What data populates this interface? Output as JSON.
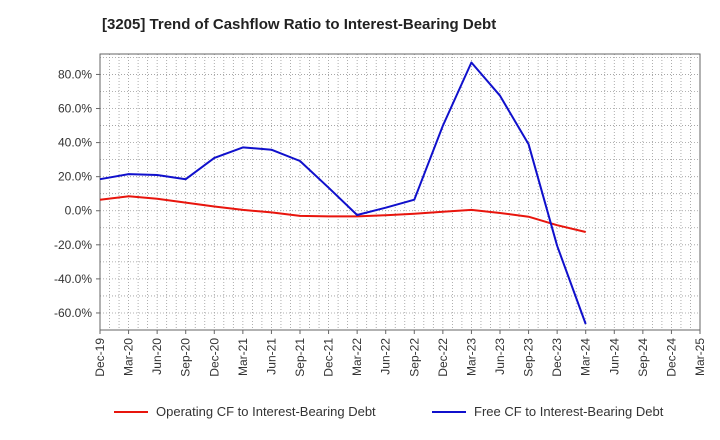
{
  "chart_data": {
    "type": "line",
    "title": "[3205]  Trend of Cashflow Ratio to Interest-Bearing Debt",
    "xlabel": "",
    "ylabel": "",
    "categories": [
      "Dec-19",
      "Mar-20",
      "Jun-20",
      "Sep-20",
      "Dec-20",
      "Mar-21",
      "Jun-21",
      "Sep-21",
      "Dec-21",
      "Mar-22",
      "Jun-22",
      "Sep-22",
      "Dec-22",
      "Mar-23",
      "Jun-23",
      "Sep-23",
      "Dec-23",
      "Mar-24",
      "Jun-24",
      "Sep-24",
      "Dec-24",
      "Mar-25"
    ],
    "ylim": [
      -70,
      92
    ],
    "yticks": [
      80,
      60,
      40,
      20,
      0,
      -20,
      -40,
      -60
    ],
    "ytick_labels": [
      "80.0%",
      "60.0%",
      "40.0%",
      "20.0%",
      "0.0%",
      "-20.0%",
      "-40.0%",
      "-60.0%"
    ],
    "grid": true,
    "legend_position": "bottom",
    "series": [
      {
        "name": "Operating CF to Interest-Bearing Debt",
        "color": "#e8150d",
        "values": [
          6.5,
          8.5,
          7.0,
          4.8,
          2.5,
          0.5,
          -1.0,
          -3.0,
          -3.3,
          -3.3,
          -2.6,
          -1.8,
          -0.6,
          0.5,
          -1.3,
          -3.5,
          -8.5,
          -12.5,
          null,
          null,
          null,
          null
        ]
      },
      {
        "name": "Free CF to Interest-Bearing Debt",
        "color": "#1010cc",
        "values": [
          18.5,
          21.5,
          21.0,
          18.5,
          31.0,
          37.2,
          35.8,
          29.2,
          13.5,
          -2.5,
          1.8,
          6.5,
          50.0,
          87.0,
          67.5,
          39.0,
          -20.5,
          -66.5,
          null,
          null,
          null,
          null
        ]
      }
    ]
  }
}
